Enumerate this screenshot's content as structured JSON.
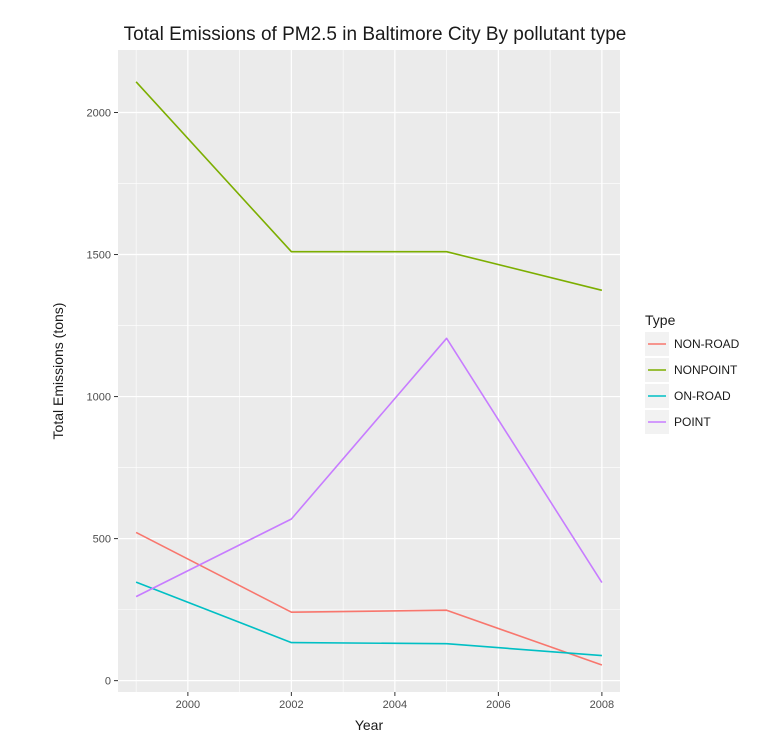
{
  "chart_data": {
    "type": "line",
    "title": "Total Emissions of PM2.5 in Baltimore City By pollutant type",
    "xlabel": "Year",
    "ylabel": "Total Emissions (tons)",
    "xlim": [
      1998.65,
      2008.35
    ],
    "ylim": [
      -40,
      2220
    ],
    "x_ticks": [
      2000,
      2002,
      2004,
      2006,
      2008
    ],
    "y_ticks": [
      0,
      500,
      1000,
      1500,
      2000
    ],
    "grid": true,
    "legend": {
      "title": "Type",
      "placement": "right"
    },
    "x": [
      1999,
      2002,
      2005,
      2008
    ],
    "series": [
      {
        "name": "NON-ROAD",
        "color": "#F8766D",
        "values": [
          522,
          241,
          248,
          55
        ]
      },
      {
        "name": "NONPOINT",
        "color": "#7CAE00",
        "values": [
          2108,
          1510,
          1510,
          1374
        ]
      },
      {
        "name": "ON-ROAD",
        "color": "#00BFC4",
        "values": [
          347,
          134,
          130,
          88
        ]
      },
      {
        "name": "POINT",
        "color": "#C77CFF",
        "values": [
          296,
          569,
          1205,
          345
        ]
      }
    ]
  }
}
